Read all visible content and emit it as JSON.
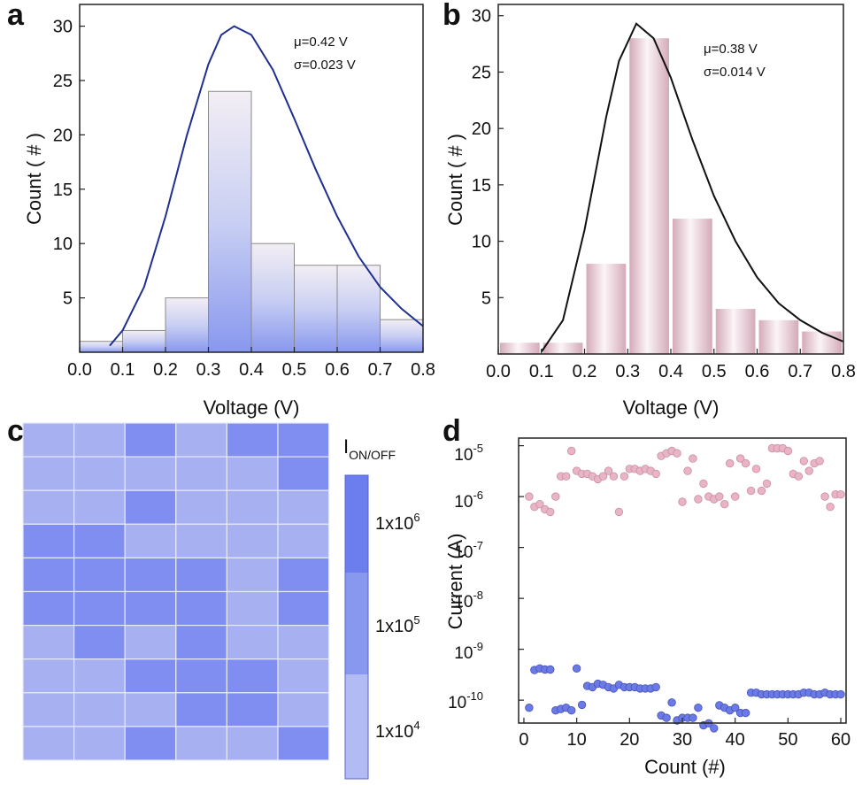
{
  "chart_data": [
    {
      "panel": "a",
      "type": "bar",
      "bins": [
        {
          "x0": 0.0,
          "x1": 0.1,
          "count": 1
        },
        {
          "x0": 0.1,
          "x1": 0.2,
          "count": 2
        },
        {
          "x0": 0.2,
          "x1": 0.3,
          "count": 5
        },
        {
          "x0": 0.3,
          "x1": 0.4,
          "count": 24
        },
        {
          "x0": 0.4,
          "x1": 0.5,
          "count": 10
        },
        {
          "x0": 0.5,
          "x1": 0.6,
          "count": 8
        },
        {
          "x0": 0.6,
          "x1": 0.7,
          "count": 8
        },
        {
          "x0": 0.7,
          "x1": 0.8,
          "count": 3
        }
      ],
      "fit_curve": {
        "color": "#1f2f8f",
        "points": [
          [
            0.07,
            0.6
          ],
          [
            0.1,
            2.0
          ],
          [
            0.15,
            6.0
          ],
          [
            0.2,
            12.5
          ],
          [
            0.25,
            20.0
          ],
          [
            0.3,
            26.5
          ],
          [
            0.33,
            29.2
          ],
          [
            0.36,
            30.0
          ],
          [
            0.4,
            29.2
          ],
          [
            0.45,
            26.0
          ],
          [
            0.5,
            21.5
          ],
          [
            0.55,
            16.8
          ],
          [
            0.6,
            12.5
          ],
          [
            0.65,
            8.8
          ],
          [
            0.7,
            6.0
          ],
          [
            0.75,
            4.0
          ],
          [
            0.8,
            2.4
          ]
        ]
      },
      "bar_colors": {
        "top": "#f3eef4",
        "bottom": "#8898ee",
        "stroke": "#8a8a8a"
      },
      "xlabel": "Voltage (V)",
      "ylabel": "Count ( # )",
      "xlim": [
        0.0,
        0.8
      ],
      "ylim": [
        0,
        32
      ],
      "xticks": [
        "0.0",
        "0.1",
        "0.2",
        "0.3",
        "0.4",
        "0.5",
        "0.6",
        "0.7",
        "0.8"
      ],
      "yticks": [
        "5",
        "10",
        "15",
        "20",
        "25",
        "30"
      ],
      "annotations": [
        "μ=0.42 V",
        "σ=0.023 V"
      ],
      "grid": false
    },
    {
      "panel": "b",
      "type": "bar",
      "bins": [
        {
          "x0": 0.0,
          "x1": 0.1,
          "count": 1
        },
        {
          "x0": 0.1,
          "x1": 0.2,
          "count": 1
        },
        {
          "x0": 0.2,
          "x1": 0.3,
          "count": 8
        },
        {
          "x0": 0.3,
          "x1": 0.4,
          "count": 28
        },
        {
          "x0": 0.4,
          "x1": 0.5,
          "count": 12
        },
        {
          "x0": 0.5,
          "x1": 0.6,
          "count": 4
        },
        {
          "x0": 0.6,
          "x1": 0.7,
          "count": 3
        },
        {
          "x0": 0.7,
          "x1": 0.8,
          "count": 2
        }
      ],
      "fit_curve": {
        "color": "#111111",
        "points": [
          [
            0.1,
            0.2
          ],
          [
            0.15,
            3.0
          ],
          [
            0.2,
            11.0
          ],
          [
            0.25,
            21.0
          ],
          [
            0.28,
            26.0
          ],
          [
            0.32,
            29.3
          ],
          [
            0.36,
            28.0
          ],
          [
            0.4,
            24.5
          ],
          [
            0.45,
            19.0
          ],
          [
            0.5,
            14.0
          ],
          [
            0.55,
            10.0
          ],
          [
            0.6,
            6.8
          ],
          [
            0.65,
            4.5
          ],
          [
            0.7,
            3.0
          ],
          [
            0.75,
            1.9
          ],
          [
            0.8,
            1.1
          ]
        ]
      },
      "bar_colors": {
        "center": "#fbf5f8",
        "edge": "#d4aab9"
      },
      "xlabel": "Voltage (V)",
      "ylabel": "Count ( # )",
      "xlim": [
        0.0,
        0.8
      ],
      "ylim": [
        0,
        31
      ],
      "xticks": [
        "0.0",
        "0.1",
        "0.2",
        "0.3",
        "0.4",
        "0.5",
        "0.6",
        "0.7",
        "0.8"
      ],
      "yticks": [
        "5",
        "10",
        "15",
        "20",
        "25",
        "30"
      ],
      "annotations": [
        "μ=0.38 V",
        "σ=0.014 V"
      ],
      "grid": false
    },
    {
      "panel": "c",
      "type": "heatmap",
      "levels": [
        [
          1,
          1,
          2,
          1,
          2,
          2
        ],
        [
          1,
          1,
          1,
          1,
          1,
          2
        ],
        [
          1,
          1,
          2,
          1,
          1,
          1
        ],
        [
          2,
          2,
          1,
          1,
          1,
          1
        ],
        [
          2,
          2,
          2,
          2,
          1,
          2
        ],
        [
          2,
          2,
          2,
          2,
          1,
          2
        ],
        [
          1,
          2,
          1,
          2,
          1,
          1
        ],
        [
          1,
          1,
          2,
          2,
          2,
          1
        ],
        [
          1,
          1,
          1,
          2,
          2,
          1
        ],
        [
          1,
          1,
          2,
          1,
          1,
          2
        ]
      ],
      "level_colors": [
        "#a7b1f1",
        "#7f8ef0"
      ],
      "colorbar": {
        "title": "I",
        "title_sub": "ON/OFF",
        "labels": [
          "1x10",
          "1x10",
          "1x10"
        ],
        "label_exponents": [
          "6",
          "5",
          "4"
        ],
        "band_colors": [
          "#6c7ded",
          "#8898ee",
          "#b2bbf3"
        ]
      }
    },
    {
      "panel": "d",
      "type": "scatter",
      "xlabel": "Count (#)",
      "ylabel": "Current (A)",
      "xlim": [
        -1,
        61
      ],
      "ylim_log10": [
        -10.45,
        -4.85
      ],
      "xticks": [
        "0",
        "10",
        "20",
        "30",
        "40",
        "50",
        "60"
      ],
      "yticks": [
        "10",
        "10",
        "10",
        "10",
        "10",
        "10"
      ],
      "ytick_exponents": [
        "-5",
        "-6",
        "-7",
        "-8",
        "-9",
        "-10"
      ],
      "series": [
        {
          "color": "#e8b4c6",
          "stroke": "#c98ea3",
          "values": [
            1e-06,
            6.3e-07,
            7.1e-07,
            5.6e-07,
            5e-07,
            1e-06,
            2.5e-06,
            2.5e-06,
            7.9e-06,
            3.2e-06,
            2.8e-06,
            2.8e-06,
            2.5e-06,
            2.2e-06,
            2.5e-06,
            3.2e-06,
            2.5e-06,
            5e-07,
            2.5e-06,
            3.5e-06,
            3.5e-06,
            3.2e-06,
            3.5e-06,
            3.2e-06,
            2.8e-06,
            6.3e-06,
            7.1e-06,
            7.9e-06,
            7.1e-06,
            7.9e-07,
            3.2e-06,
            5.6e-06,
            8.9e-07,
            1.8e-06,
            1e-06,
            8.9e-07,
            1e-06,
            7.1e-07,
            4.5e-06,
            1e-06,
            5.6e-06,
            4.5e-06,
            1.3e-06,
            3.5e-06,
            1.3e-06,
            1.8e-06,
            8.9e-06,
            8.9e-06,
            8.9e-06,
            7.9e-06,
            2.8e-06,
            2.5e-06,
            5e-06,
            3.2e-06,
            4.5e-06,
            5e-06,
            1e-06,
            6.3e-07,
            1.1e-06,
            1.1e-06
          ]
        },
        {
          "color": "#6b7ae6",
          "stroke": "#4552b8",
          "values": [
            7.1e-11,
            3.9e-10,
            4.2e-10,
            4e-10,
            4e-10,
            6.3e-11,
            6.7e-11,
            7.1e-11,
            6.3e-11,
            4.2e-10,
            8.1e-11,
            1.9e-10,
            1.8e-10,
            2.1e-10,
            2e-10,
            1.8e-10,
            1.7e-10,
            2e-10,
            1.8e-10,
            1.8e-10,
            1.8e-10,
            1.7e-10,
            1.7e-10,
            1.7e-10,
            1.8e-10,
            5e-11,
            4.5e-11,
            9e-11,
            4e-11,
            4.5e-11,
            4.5e-11,
            4.5e-11,
            7.1e-11,
            3.2e-11,
            3.5e-11,
            2.8e-11,
            7.9e-11,
            7.1e-11,
            6.3e-11,
            7.1e-11,
            5.6e-11,
            5.6e-11,
            1.4e-10,
            1.4e-10,
            1.3e-10,
            1.3e-10,
            1.3e-10,
            1.3e-10,
            1.3e-10,
            1.3e-10,
            1.3e-10,
            1.3e-10,
            1.4e-10,
            1.4e-10,
            1.3e-10,
            1.3e-10,
            1.4e-10,
            1.3e-10,
            1.3e-10,
            1.3e-10
          ]
        }
      ],
      "grid": false
    }
  ]
}
